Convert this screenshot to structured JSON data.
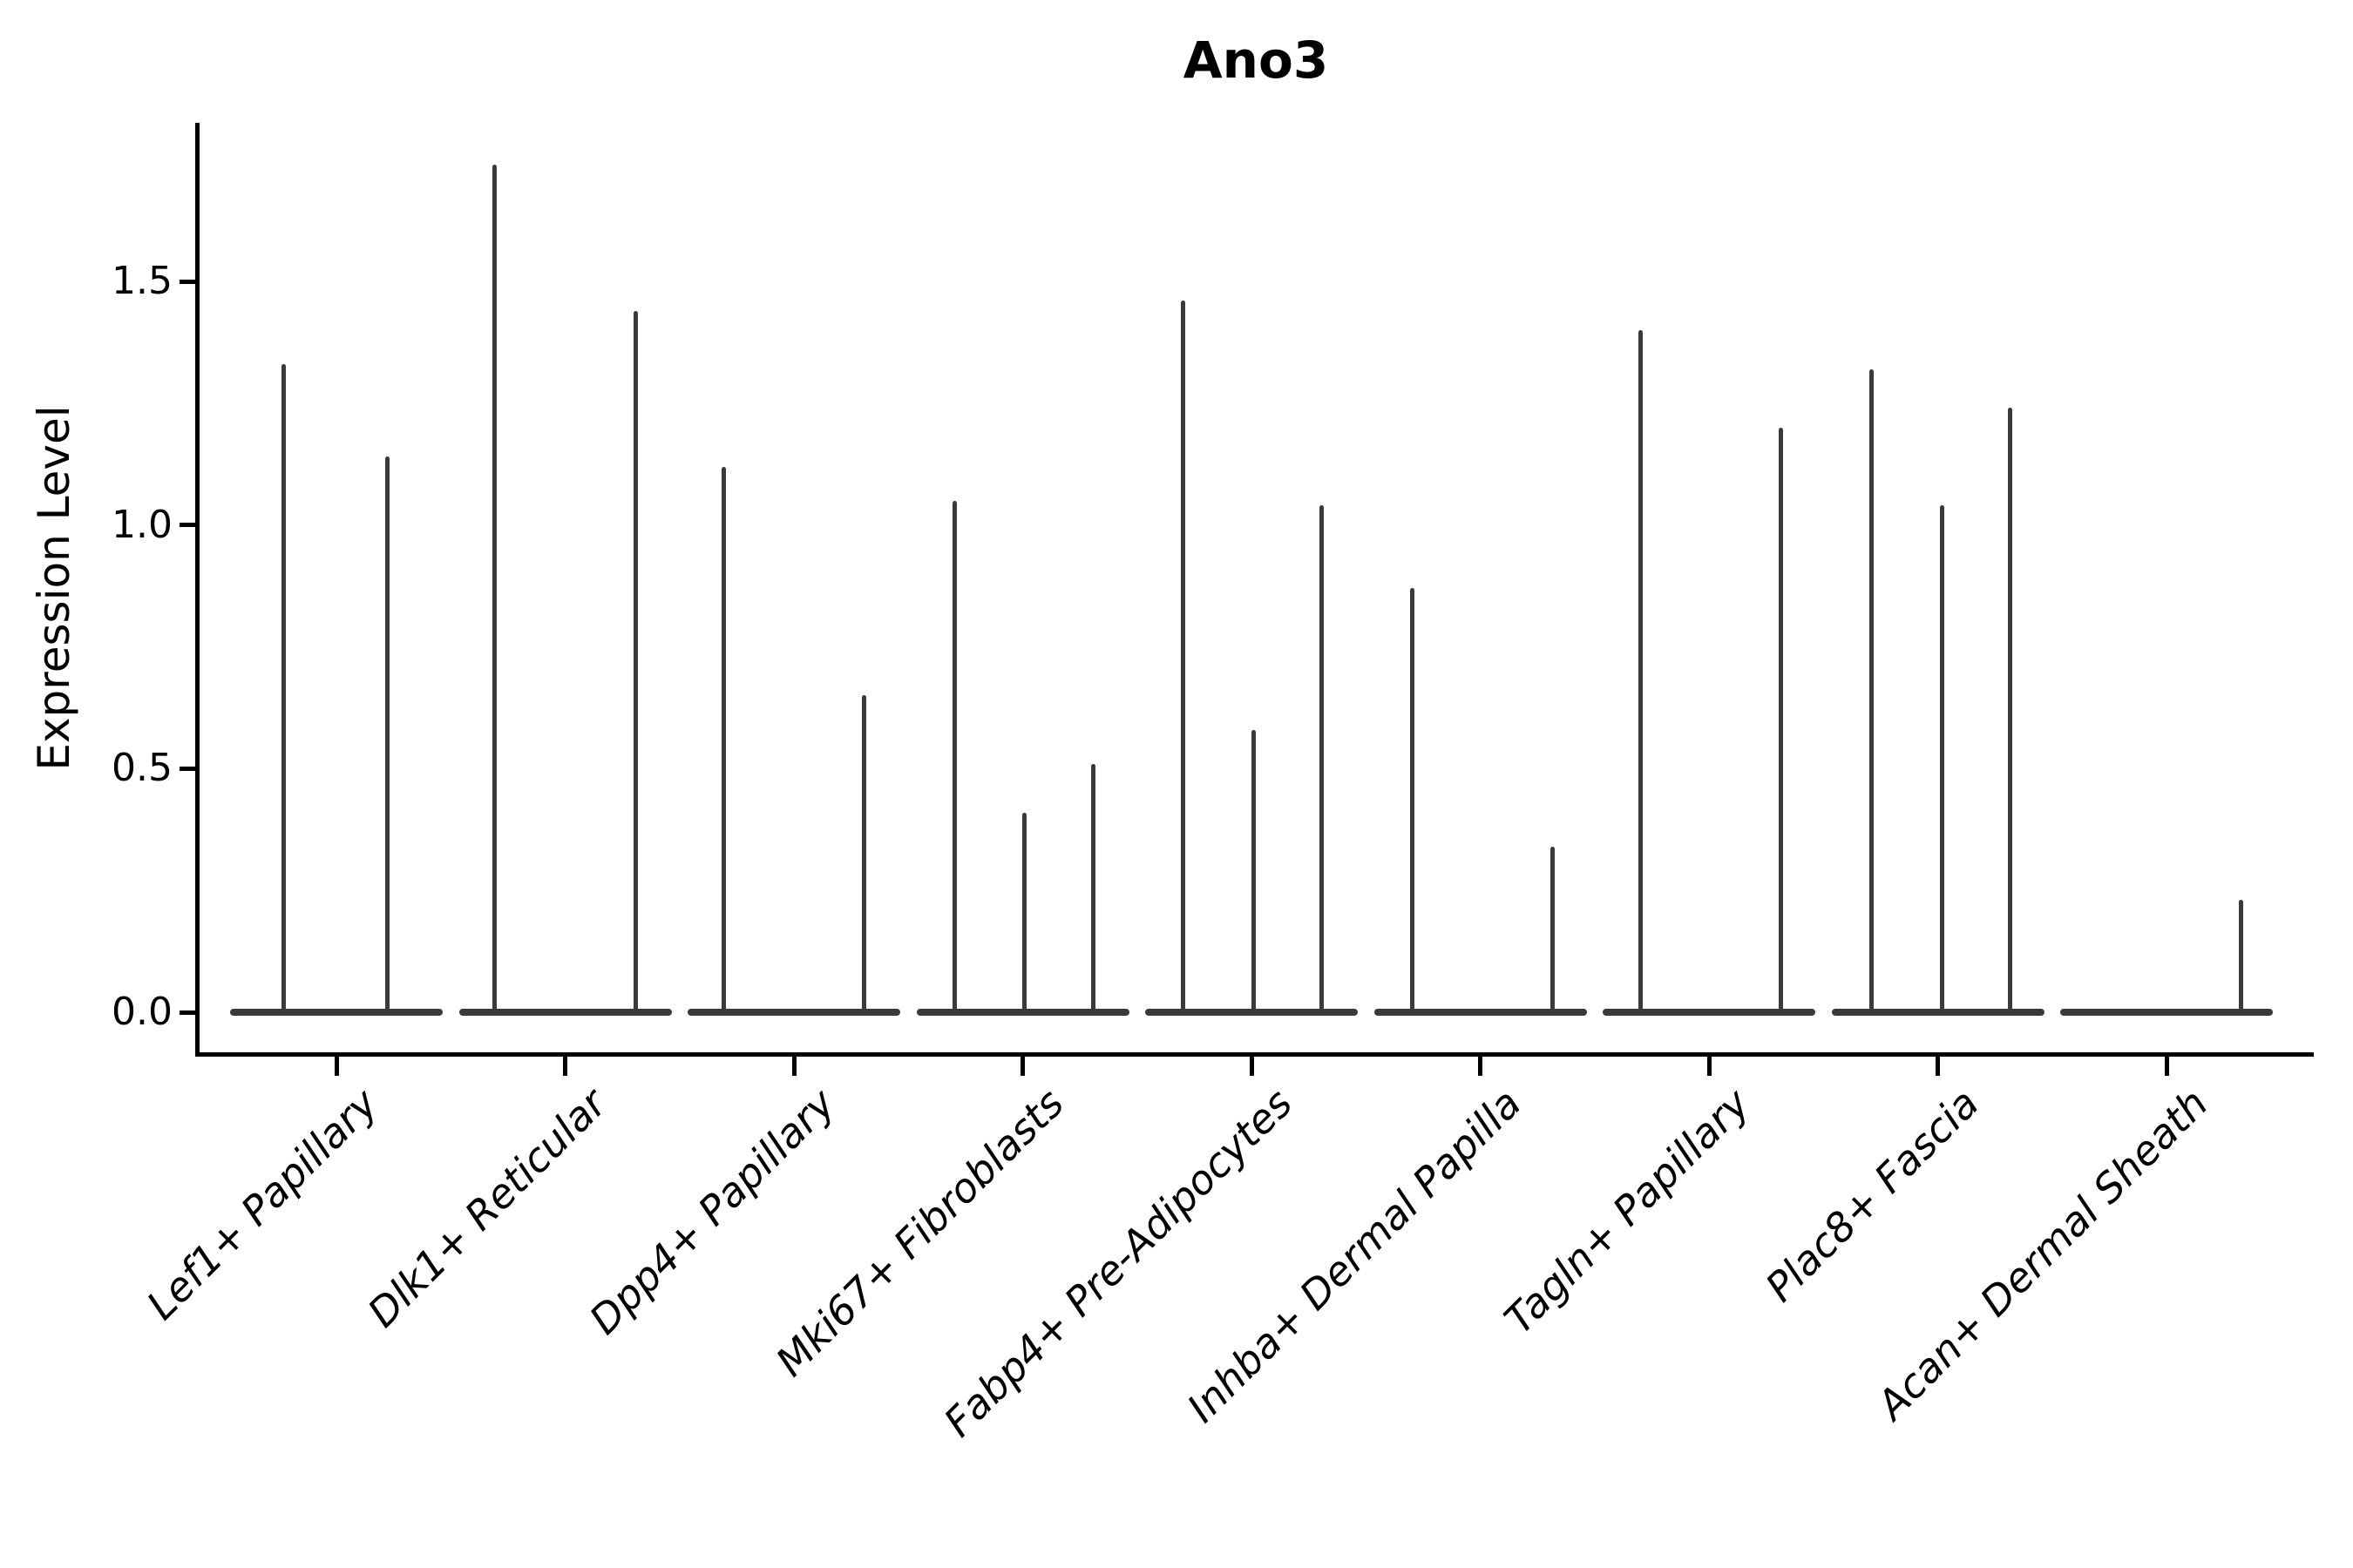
{
  "chart_data": {
    "type": "violin",
    "title": "Ano3",
    "xlabel": "",
    "ylabel": "Expression Level",
    "ylim": [
      -0.08,
      1.83
    ],
    "yticks": [
      "0.0",
      "0.5",
      "1.0",
      "1.5"
    ],
    "ytick_values": [
      0.0,
      0.5,
      1.0,
      1.5
    ],
    "grid": false,
    "legend": "none",
    "violin_color": "#3a3a3a",
    "axis_color": "#000000",
    "series": [
      {
        "name": "Lef1+ Papillary",
        "spikes": [
          {
            "value": 1.33,
            "offset": 0.25
          },
          {
            "value": 1.14,
            "offset": 0.74
          }
        ]
      },
      {
        "name": "Dlk1+ Reticular",
        "spikes": [
          {
            "value": 1.74,
            "offset": 0.17
          },
          {
            "value": 1.44,
            "offset": 0.83
          }
        ]
      },
      {
        "name": "Dpp4+ Papillary",
        "spikes": [
          {
            "value": 1.12,
            "offset": 0.17
          },
          {
            "value": 0.65,
            "offset": 0.83
          }
        ]
      },
      {
        "name": "Mki67+ Fibroblasts",
        "spikes": [
          {
            "value": 1.05,
            "offset": 0.18
          },
          {
            "value": 0.41,
            "offset": 0.51
          },
          {
            "value": 0.51,
            "offset": 0.83
          }
        ]
      },
      {
        "name": "Fabp4+ Pre-Adipocytes",
        "spikes": [
          {
            "value": 1.46,
            "offset": 0.18
          },
          {
            "value": 0.58,
            "offset": 0.51
          },
          {
            "value": 1.04,
            "offset": 0.83
          }
        ]
      },
      {
        "name": "Inhba+ Dermal Papilla",
        "spikes": [
          {
            "value": 0.87,
            "offset": 0.18
          },
          {
            "value": 0.34,
            "offset": 0.84
          }
        ]
      },
      {
        "name": "Tagln+ Papillary",
        "spikes": [
          {
            "value": 1.4,
            "offset": 0.18
          },
          {
            "value": 1.2,
            "offset": 0.84
          }
        ]
      },
      {
        "name": "Plac8+ Fascia",
        "spikes": [
          {
            "value": 1.32,
            "offset": 0.19
          },
          {
            "value": 1.04,
            "offset": 0.52
          },
          {
            "value": 1.24,
            "offset": 0.84
          }
        ]
      },
      {
        "name": "Acan+ Dermal Sheath",
        "spikes": [
          {
            "value": 0.23,
            "offset": 0.85
          }
        ]
      }
    ]
  }
}
